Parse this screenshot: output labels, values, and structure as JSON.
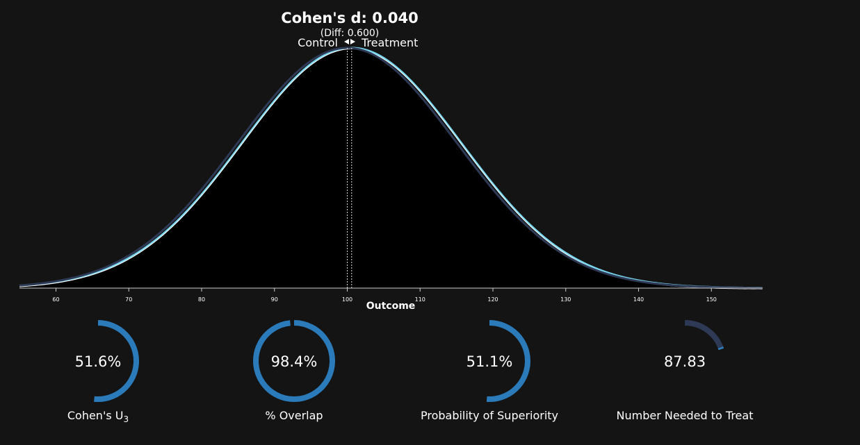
{
  "header": {
    "title": "Cohen's d: 0.040",
    "subtitle": "(Diff: 0.600)",
    "control_label": "Control",
    "treatment_label": "Treatment"
  },
  "chart_data": {
    "type": "area",
    "xlabel": "Outcome",
    "xlim": [
      55,
      157
    ],
    "xticks": [
      60,
      70,
      80,
      90,
      100,
      110,
      120,
      130,
      140,
      150
    ],
    "tick_labels": [
      "60",
      "70",
      "80",
      "90",
      "100",
      "110",
      "120",
      "130",
      "140",
      "150"
    ],
    "series": [
      {
        "name": "Control",
        "distribution": "normal",
        "mean": 100,
        "sd": 15,
        "color": "#2e3a55"
      },
      {
        "name": "Treatment",
        "distribution": "normal",
        "mean": 100.6,
        "sd": 15,
        "color": "#7ad7f0"
      }
    ],
    "colors": {
      "overlap_fill": "#000000",
      "axis": "#cccccc",
      "gauge": "#2b7bba",
      "gauge_dim": "#2e3a55"
    }
  },
  "gauges": [
    {
      "value_text": "51.6%",
      "label": "Cohen's U",
      "label_sub": "3",
      "fraction": 0.516
    },
    {
      "value_text": "98.4%",
      "label": "% Overlap",
      "label_sub": "",
      "fraction": 0.984
    },
    {
      "value_text": "51.1%",
      "label": "Probability of Superiority",
      "label_sub": "",
      "fraction": 0.511
    },
    {
      "value_text": "87.83",
      "label": "Number Needed to Treat",
      "label_sub": "",
      "fraction": 0.2
    }
  ]
}
